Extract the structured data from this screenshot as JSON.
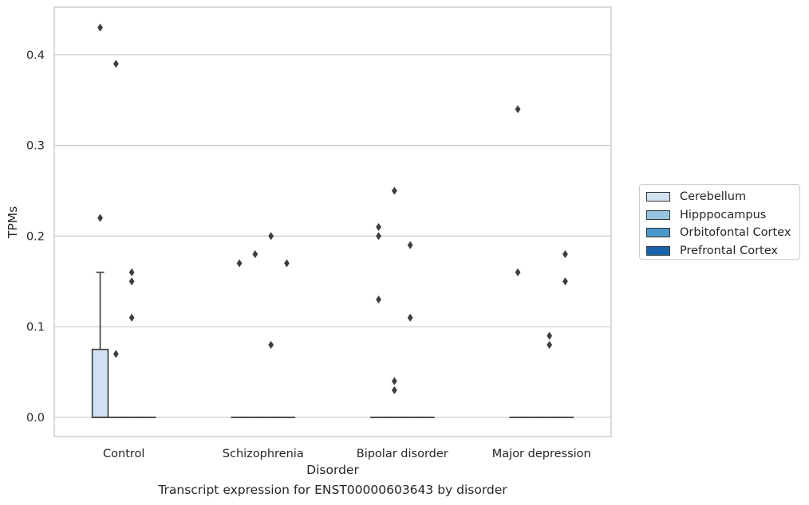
{
  "caption": "Transcript expression for ENST00000603643 by disorder",
  "chart_data": {
    "type": "box",
    "xlabel": "Disorder",
    "ylabel": "TPMs",
    "ylim": [
      -0.021,
      0.455
    ],
    "yticks": [
      0.0,
      0.1,
      0.2,
      0.3,
      0.4
    ],
    "ytick_labels": [
      "0.0",
      "0.1",
      "0.2",
      "0.3",
      "0.4"
    ],
    "grid": "horizontal",
    "categories": [
      "Control",
      "Schizophrenia",
      "Bipolar disorder",
      "Major depression"
    ],
    "hue_order": [
      "Cerebellum",
      "Hipppocampus",
      "Orbitofontal Cortex",
      "Prefrontal Cortex"
    ],
    "colors": [
      "#d0e1f2",
      "#94c4df",
      "#4a98c9",
      "#1764ab"
    ],
    "boxes": [
      {
        "category": "Control",
        "hue": "Cerebellum",
        "q1": 0.0,
        "median": 0.0,
        "q3": 0.075,
        "whisker_low": 0.0,
        "whisker_high": 0.16,
        "outliers": [
          0.43,
          0.22
        ]
      },
      {
        "category": "Control",
        "hue": "Hipppocampus",
        "q1": 0.0,
        "median": 0.0,
        "q3": 0.0,
        "whisker_low": 0.0,
        "whisker_high": 0.0,
        "outliers": [
          0.39,
          0.07
        ]
      },
      {
        "category": "Control",
        "hue": "Orbitofontal Cortex",
        "q1": 0.0,
        "median": 0.0,
        "q3": 0.0,
        "whisker_low": 0.0,
        "whisker_high": 0.0,
        "outliers": [
          0.16,
          0.15,
          0.11
        ]
      },
      {
        "category": "Control",
        "hue": "Prefrontal Cortex",
        "q1": 0.0,
        "median": 0.0,
        "q3": 0.0,
        "whisker_low": 0.0,
        "whisker_high": 0.0,
        "outliers": []
      },
      {
        "category": "Schizophrenia",
        "hue": "Cerebellum",
        "q1": 0.0,
        "median": 0.0,
        "q3": 0.0,
        "whisker_low": 0.0,
        "whisker_high": 0.0,
        "outliers": [
          0.17
        ]
      },
      {
        "category": "Schizophrenia",
        "hue": "Hipppocampus",
        "q1": 0.0,
        "median": 0.0,
        "q3": 0.0,
        "whisker_low": 0.0,
        "whisker_high": 0.0,
        "outliers": [
          0.18
        ]
      },
      {
        "category": "Schizophrenia",
        "hue": "Orbitofontal Cortex",
        "q1": 0.0,
        "median": 0.0,
        "q3": 0.0,
        "whisker_low": 0.0,
        "whisker_high": 0.0,
        "outliers": [
          0.2,
          0.08
        ]
      },
      {
        "category": "Schizophrenia",
        "hue": "Prefrontal Cortex",
        "q1": 0.0,
        "median": 0.0,
        "q3": 0.0,
        "whisker_low": 0.0,
        "whisker_high": 0.0,
        "outliers": [
          0.17
        ]
      },
      {
        "category": "Bipolar disorder",
        "hue": "Cerebellum",
        "q1": 0.0,
        "median": 0.0,
        "q3": 0.0,
        "whisker_low": 0.0,
        "whisker_high": 0.0,
        "outliers": [
          0.21,
          0.2,
          0.13
        ]
      },
      {
        "category": "Bipolar disorder",
        "hue": "Hipppocampus",
        "q1": 0.0,
        "median": 0.0,
        "q3": 0.0,
        "whisker_low": 0.0,
        "whisker_high": 0.0,
        "outliers": [
          0.25,
          0.04,
          0.03
        ]
      },
      {
        "category": "Bipolar disorder",
        "hue": "Orbitofontal Cortex",
        "q1": 0.0,
        "median": 0.0,
        "q3": 0.0,
        "whisker_low": 0.0,
        "whisker_high": 0.0,
        "outliers": [
          0.19,
          0.11
        ]
      },
      {
        "category": "Bipolar disorder",
        "hue": "Prefrontal Cortex",
        "q1": 0.0,
        "median": 0.0,
        "q3": 0.0,
        "whisker_low": 0.0,
        "whisker_high": 0.0,
        "outliers": []
      },
      {
        "category": "Major depression",
        "hue": "Cerebellum",
        "q1": 0.0,
        "median": 0.0,
        "q3": 0.0,
        "whisker_low": 0.0,
        "whisker_high": 0.0,
        "outliers": [
          0.34,
          0.16
        ]
      },
      {
        "category": "Major depression",
        "hue": "Hipppocampus",
        "q1": 0.0,
        "median": 0.0,
        "q3": 0.0,
        "whisker_low": 0.0,
        "whisker_high": 0.0,
        "outliers": []
      },
      {
        "category": "Major depression",
        "hue": "Orbitofontal Cortex",
        "q1": 0.0,
        "median": 0.0,
        "q3": 0.0,
        "whisker_low": 0.0,
        "whisker_high": 0.0,
        "outliers": [
          0.09,
          0.08
        ]
      },
      {
        "category": "Major depression",
        "hue": "Prefrontal Cortex",
        "q1": 0.0,
        "median": 0.0,
        "q3": 0.0,
        "whisker_low": 0.0,
        "whisker_high": 0.0,
        "outliers": [
          0.18,
          0.15
        ]
      }
    ],
    "legend": {
      "position": "right",
      "entries": [
        "Cerebellum",
        "Hipppocampus",
        "Orbitofontal Cortex",
        "Prefrontal Cortex"
      ]
    }
  }
}
